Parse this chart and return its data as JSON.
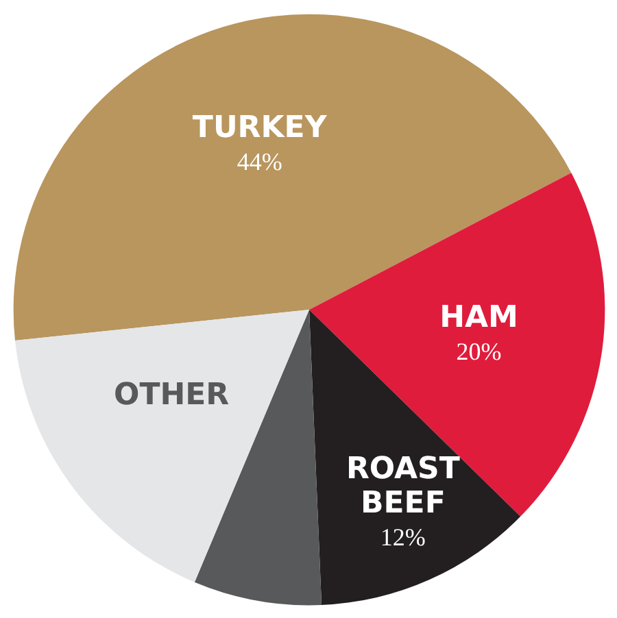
{
  "chart_data": {
    "type": "pie",
    "categories": [
      "TURKEY",
      "HAM",
      "ROAST BEEF",
      null,
      "OTHER"
    ],
    "values": [
      44,
      20,
      12,
      7,
      17
    ],
    "colors": [
      "#b8965e",
      "#e01c3c",
      "#231f20",
      "#58595b",
      "#e5e6e8"
    ],
    "value_labels": [
      "44%",
      "20%",
      "12%",
      null,
      null
    ]
  }
}
